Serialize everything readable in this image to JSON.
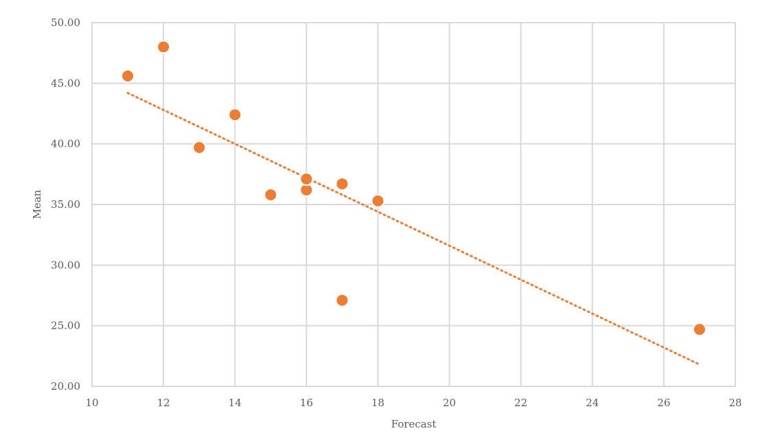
{
  "chart_data": {
    "type": "scatter",
    "title": "",
    "xlabel": "Forecast",
    "ylabel": "Mean",
    "xlim": [
      10,
      28
    ],
    "ylim": [
      20,
      50
    ],
    "x_ticks": [
      10,
      12,
      14,
      16,
      18,
      20,
      22,
      24,
      26,
      28
    ],
    "y_ticks": [
      20,
      25,
      30,
      35,
      40,
      45,
      50
    ],
    "x_tick_labels": [
      "10",
      "12",
      "14",
      "16",
      "18",
      "20",
      "22",
      "24",
      "26",
      "28"
    ],
    "y_tick_labels": [
      "20.00",
      "25.00",
      "30.00",
      "35.00",
      "40.00",
      "45.00",
      "50.00"
    ],
    "grid": true,
    "legend": "none",
    "series": [
      {
        "color": "#ed7d31",
        "points": [
          {
            "x": 11,
            "y": 45.6
          },
          {
            "x": 12,
            "y": 48.0
          },
          {
            "x": 13,
            "y": 39.7
          },
          {
            "x": 14,
            "y": 42.4
          },
          {
            "x": 15,
            "y": 35.8
          },
          {
            "x": 16,
            "y": 36.2
          },
          {
            "x": 16,
            "y": 37.1
          },
          {
            "x": 17,
            "y": 36.7
          },
          {
            "x": 17,
            "y": 27.1
          },
          {
            "x": 18,
            "y": 35.3
          },
          {
            "x": 27,
            "y": 24.7
          }
        ]
      }
    ],
    "trendline": {
      "type": "linear",
      "style": "dotted",
      "color": "#ed7d31",
      "from": {
        "x": 11,
        "y": 44.2
      },
      "to": {
        "x": 27,
        "y": 21.8
      }
    }
  }
}
